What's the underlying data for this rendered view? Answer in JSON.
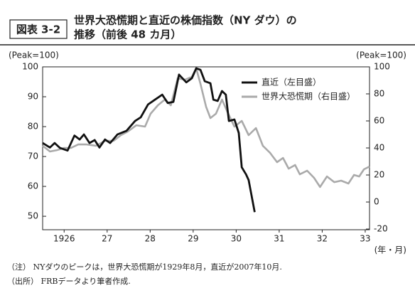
{
  "chart_data": {
    "type": "line",
    "figure_label": "図表 3-2",
    "title": [
      "世界大恐慌期と直近の株価指数（NY ダウ）の",
      "推移（前後 48 カ月）"
    ],
    "ylabel": "(Peak=100)",
    "y2label": "(Peak=100)",
    "xlabel": "(年・月)",
    "xlim": [
      1926.0,
      1933.6
    ],
    "xticks": [
      {
        "value": 1926.5,
        "label": "1926"
      },
      {
        "value": 1927.5,
        "label": "27"
      },
      {
        "value": 1928.5,
        "label": "28"
      },
      {
        "value": 1929.5,
        "label": "29"
      },
      {
        "value": 1930.5,
        "label": "30"
      },
      {
        "value": 1931.5,
        "label": "31"
      },
      {
        "value": 1932.5,
        "label": "32"
      },
      {
        "value": 1933.5,
        "label": "33"
      }
    ],
    "ylim": [
      45.5,
      100
    ],
    "yticks": [
      50,
      60,
      70,
      80,
      90,
      100
    ],
    "y2lim": [
      -20.5,
      100
    ],
    "y2ticks": [
      -20,
      0,
      20,
      40,
      60,
      80,
      100
    ],
    "series": [
      {
        "name": "直近（左目盛）",
        "color": "#111111",
        "x": [
          1926.0,
          1926.17,
          1926.28,
          1926.4,
          1926.58,
          1926.74,
          1926.86,
          1926.96,
          1927.09,
          1927.21,
          1927.32,
          1927.45,
          1927.57,
          1927.74,
          1927.95,
          1928.15,
          1928.28,
          1928.45,
          1928.61,
          1928.78,
          1928.91,
          1929.04,
          1929.17,
          1929.34,
          1929.47,
          1929.57,
          1929.67,
          1929.77,
          1929.9,
          1929.97,
          1930.07,
          1930.17,
          1930.26,
          1930.33,
          1930.46,
          1930.56,
          1930.63,
          1930.73,
          1930.79,
          1930.93
        ],
        "values": [
          74.5,
          73,
          74.5,
          72.9,
          72,
          77,
          75.7,
          77.4,
          74.5,
          75.5,
          73,
          75.7,
          74.5,
          77.4,
          78.6,
          81.9,
          83.1,
          87.4,
          89,
          90.7,
          87.9,
          88.3,
          97.4,
          94.8,
          96.2,
          99.5,
          99,
          95.2,
          94.5,
          89,
          88.6,
          91.9,
          90.7,
          81.9,
          82.4,
          77.9,
          66.4,
          64,
          62.1,
          51.4
        ]
      },
      {
        "name": "世界大恐慌期（右目盛）",
        "color": "#aaaaaa",
        "axis": "y2",
        "x": [
          1926.0,
          1926.17,
          1926.33,
          1926.5,
          1926.66,
          1926.83,
          1927.02,
          1927.24,
          1927.45,
          1927.65,
          1927.82,
          1927.98,
          1928.18,
          1928.38,
          1928.51,
          1928.68,
          1928.84,
          1928.98,
          1929.14,
          1929.31,
          1929.47,
          1929.57,
          1929.67,
          1929.8,
          1929.9,
          1930.03,
          1930.17,
          1930.3,
          1930.46,
          1930.63,
          1930.79,
          1930.96,
          1931.12,
          1931.29,
          1931.45,
          1931.59,
          1931.72,
          1931.87,
          1931.98,
          1932.15,
          1932.31,
          1932.45,
          1932.61,
          1932.78,
          1932.94,
          1933.11,
          1933.24,
          1933.36,
          1933.47,
          1933.6
        ],
        "values": [
          41.6,
          37.4,
          38.4,
          40,
          40,
          42.6,
          42.6,
          41.6,
          45.3,
          45.3,
          49.5,
          52.1,
          56.8,
          55.8,
          65.3,
          71.6,
          75.8,
          71.6,
          91.6,
          90.5,
          92.6,
          98.9,
          87.4,
          70.5,
          62.1,
          65.3,
          75.8,
          66.3,
          55.8,
          60,
          49.5,
          54.7,
          41.6,
          36.3,
          29.5,
          32.6,
          24.7,
          27.4,
          20.5,
          23.2,
          17.9,
          11.1,
          18.9,
          14.7,
          15.8,
          13.7,
          20,
          18.9,
          24.2,
          26.3
        ]
      }
    ],
    "legend": "upper right",
    "notes": [
      "（注） NYダウのピークは，世界大恐慌期が1929年8月，直近が2007年10月.",
      "（出所） FRBデータより筆者作成."
    ]
  }
}
